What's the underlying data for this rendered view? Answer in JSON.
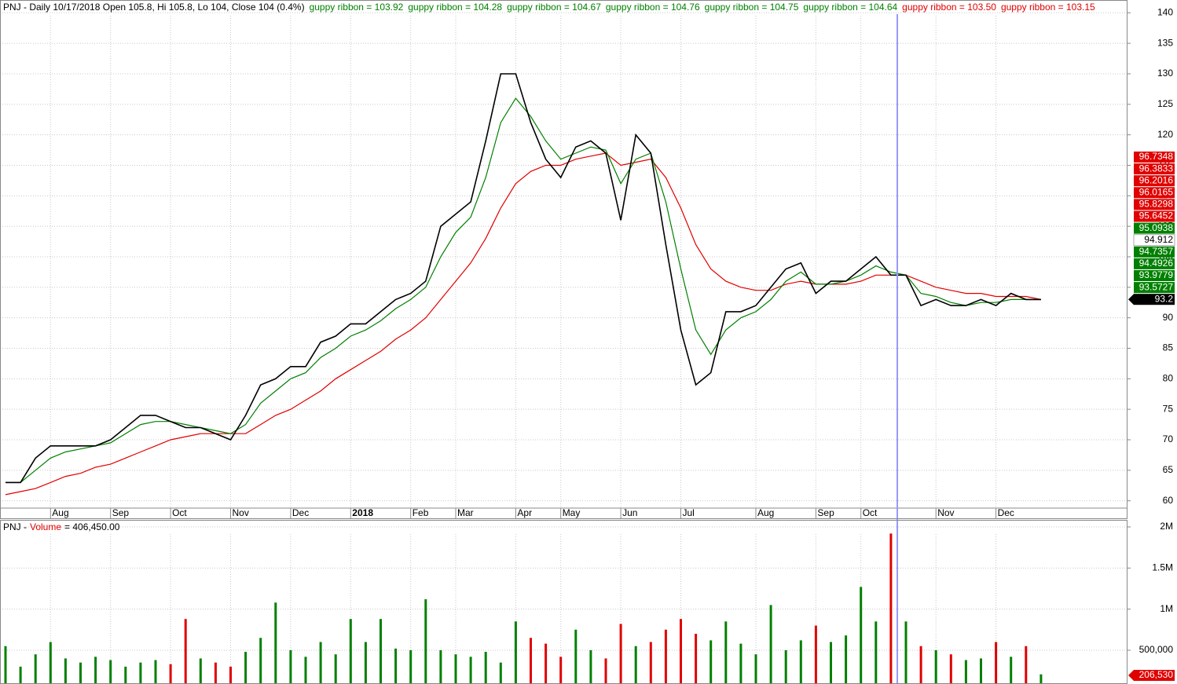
{
  "chart_data": [
    {
      "type": "line",
      "header": [
        {
          "text": "PNJ - Daily 10/17/2018 Open 105.8, Hi 105.8, Lo 104, Close 104 (0.4%)",
          "color": "#000000"
        },
        {
          "text": "guppy ribbon = 103.92",
          "color": "#008000"
        },
        {
          "text": "guppy ribbon = 104.28",
          "color": "#008000"
        },
        {
          "text": "guppy ribbon = 104.67",
          "color": "#008000"
        },
        {
          "text": "guppy ribbon = 104.76",
          "color": "#008000"
        },
        {
          "text": "guppy ribbon = 104.75",
          "color": "#008000"
        },
        {
          "text": "guppy ribbon = 104.64",
          "color": "#008000"
        },
        {
          "text": "guppy ribbon = 103.50",
          "color": "#e00000"
        },
        {
          "text": "guppy ribbon = 103.15",
          "color": "#e00000"
        }
      ],
      "categories": [
        null,
        null,
        null,
        "Aug",
        null,
        null,
        null,
        "Sep",
        null,
        null,
        null,
        "Oct",
        null,
        null,
        null,
        "Nov",
        null,
        null,
        null,
        "Dec",
        null,
        null,
        null,
        "2018",
        null,
        null,
        null,
        "Feb",
        null,
        null,
        "Mar",
        null,
        null,
        null,
        "Apr",
        null,
        null,
        "May",
        null,
        null,
        null,
        "Jun",
        null,
        null,
        null,
        "Jul",
        null,
        null,
        null,
        null,
        "Aug",
        null,
        null,
        null,
        "Sep",
        null,
        null,
        "Oct",
        null,
        null,
        null,
        null,
        "Nov",
        null,
        null,
        null,
        "Dec",
        null,
        null,
        null
      ],
      "series": [
        {
          "color": "#000000",
          "values": [
            63,
            63,
            67,
            69,
            69,
            69,
            69,
            70,
            72,
            74,
            74,
            73,
            72,
            72,
            71,
            70,
            74,
            79,
            80,
            82,
            82,
            86,
            87,
            89,
            89,
            91,
            93,
            94,
            96,
            105,
            107,
            109,
            119,
            130,
            130,
            122,
            116,
            113,
            118,
            119,
            117,
            106,
            120,
            117,
            102,
            88,
            79,
            81,
            91,
            91,
            92,
            95,
            98,
            99,
            94,
            96,
            96,
            98,
            100,
            97,
            97,
            92,
            93,
            92,
            92,
            93,
            92,
            94,
            93,
            93
          ]
        },
        {
          "color": "#008000",
          "values": [
            63,
            63,
            65,
            67,
            68,
            68.5,
            69,
            69.5,
            71,
            72.5,
            73,
            73,
            72.5,
            72,
            71.5,
            71,
            72.5,
            76,
            78,
            80,
            81,
            83.5,
            85,
            87,
            88,
            89.5,
            91.5,
            93,
            95,
            100,
            104,
            106.5,
            113,
            122,
            126,
            123,
            119,
            116,
            117,
            118,
            117.5,
            112,
            116,
            117,
            109,
            98,
            88,
            84,
            88,
            90,
            91,
            93,
            96,
            97.5,
            95.5,
            95.5,
            96,
            97,
            98.5,
            97.5,
            97,
            94,
            93.5,
            92.5,
            92,
            92.5,
            92.5,
            93,
            93,
            93
          ]
        },
        {
          "color": "#e00000",
          "values": [
            61,
            61.5,
            62,
            63,
            64,
            64.5,
            65.5,
            66,
            67,
            68,
            69,
            70,
            70.5,
            71,
            71,
            71,
            71,
            72.5,
            74,
            75,
            76.5,
            78,
            80,
            81.5,
            83,
            84.5,
            86.5,
            88,
            90,
            93,
            96,
            99,
            103,
            108,
            112,
            114,
            115,
            115,
            116,
            116.5,
            117,
            115,
            115.5,
            116,
            113,
            108,
            102,
            98,
            96,
            95,
            94.5,
            94.5,
            95.5,
            96,
            95.5,
            95.5,
            95.5,
            96,
            97,
            97,
            97,
            96,
            95,
            94.5,
            94,
            94,
            93.5,
            93.5,
            93.5,
            93
          ]
        }
      ],
      "ylim": [
        58.8,
        142.1
      ],
      "yticks": [
        60,
        65,
        70,
        75,
        80,
        85,
        90,
        95,
        100,
        105,
        110,
        115,
        120,
        125,
        130,
        135,
        140
      ],
      "price_labels": [
        {
          "value": 96.7348,
          "color": "#e00000"
        },
        {
          "value": 96.3833,
          "color": "#e00000"
        },
        {
          "value": 96.2016,
          "color": "#e00000"
        },
        {
          "value": 96.0165,
          "color": "#e00000"
        },
        {
          "value": 95.8298,
          "color": "#e00000"
        },
        {
          "value": 95.6452,
          "color": "#e00000"
        },
        {
          "value": 95.0938,
          "color": "#008000"
        },
        {
          "value": 94.912,
          "color": "#ffffff"
        },
        {
          "value": 94.7357,
          "color": "#008000"
        },
        {
          "value": 94.4926,
          "color": "#008000"
        },
        {
          "value": 93.9779,
          "color": "#008000"
        },
        {
          "value": 93.5727,
          "color": "#008000"
        },
        {
          "value": 93.2,
          "color": "#000000"
        }
      ]
    },
    {
      "type": "volume",
      "header": [
        {
          "text": "PNJ -",
          "color": "#000000"
        },
        {
          "text": "Volume",
          "color": "#e00000"
        },
        {
          "text": "= 406,450.00",
          "color": "#000000"
        }
      ],
      "values": [
        550000,
        300000,
        450000,
        600000,
        400000,
        350000,
        420000,
        380000,
        300000,
        350000,
        380000,
        330000,
        880000,
        400000,
        350000,
        300000,
        480000,
        650000,
        1080000,
        500000,
        420000,
        600000,
        450000,
        880000,
        600000,
        880000,
        520000,
        500000,
        1120000,
        500000,
        450000,
        420000,
        480000,
        350000,
        850000,
        650000,
        580000,
        420000,
        750000,
        500000,
        400000,
        820000,
        550000,
        600000,
        750000,
        880000,
        700000,
        620000,
        850000,
        580000,
        450000,
        1050000,
        500000,
        620000,
        800000,
        600000,
        680000,
        1270000,
        850000,
        1920000,
        850000,
        550000,
        500000,
        450000,
        380000,
        400000,
        600000,
        420000,
        550000,
        206530
      ],
      "up_color": "#008000",
      "down_color": "#e00000",
      "ylim": [
        89000,
        2086000
      ],
      "yticks": [
        {
          "value": 500000,
          "label": "500,000"
        },
        {
          "value": 1000000,
          "label": "1M"
        },
        {
          "value": 1500000,
          "label": "1.5M"
        },
        {
          "value": 2000000,
          "label": "2M"
        }
      ],
      "last_label": {
        "value": 206530,
        "label": "206,530",
        "color": "#e00000"
      }
    }
  ]
}
